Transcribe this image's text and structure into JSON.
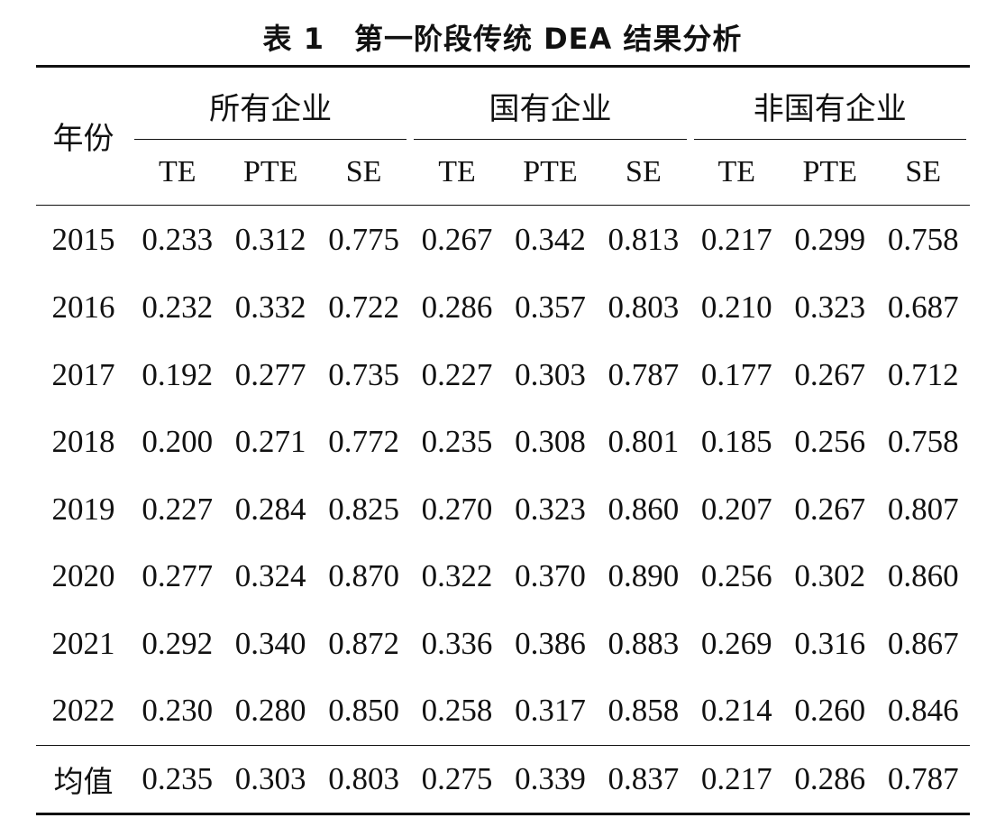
{
  "caption": "表 1　第一阶段传统 DEA 结果分析",
  "table": {
    "year_header": "年份",
    "groups": [
      "所有企业",
      "国有企业",
      "非国有企业"
    ],
    "sub_headers": [
      "TE",
      "PTE",
      "SE"
    ],
    "rows": [
      {
        "year": "2015",
        "values": [
          "0.233",
          "0.312",
          "0.775",
          "0.267",
          "0.342",
          "0.813",
          "0.217",
          "0.299",
          "0.758"
        ]
      },
      {
        "year": "2016",
        "values": [
          "0.232",
          "0.332",
          "0.722",
          "0.286",
          "0.357",
          "0.803",
          "0.210",
          "0.323",
          "0.687"
        ]
      },
      {
        "year": "2017",
        "values": [
          "0.192",
          "0.277",
          "0.735",
          "0.227",
          "0.303",
          "0.787",
          "0.177",
          "0.267",
          "0.712"
        ]
      },
      {
        "year": "2018",
        "values": [
          "0.200",
          "0.271",
          "0.772",
          "0.235",
          "0.308",
          "0.801",
          "0.185",
          "0.256",
          "0.758"
        ]
      },
      {
        "year": "2019",
        "values": [
          "0.227",
          "0.284",
          "0.825",
          "0.270",
          "0.323",
          "0.860",
          "0.207",
          "0.267",
          "0.807"
        ]
      },
      {
        "year": "2020",
        "values": [
          "0.277",
          "0.324",
          "0.870",
          "0.322",
          "0.370",
          "0.890",
          "0.256",
          "0.302",
          "0.860"
        ]
      },
      {
        "year": "2021",
        "values": [
          "0.292",
          "0.340",
          "0.872",
          "0.336",
          "0.386",
          "0.883",
          "0.269",
          "0.316",
          "0.867"
        ]
      },
      {
        "year": "2022",
        "values": [
          "0.230",
          "0.280",
          "0.850",
          "0.258",
          "0.317",
          "0.858",
          "0.214",
          "0.260",
          "0.846"
        ]
      }
    ],
    "mean_row": {
      "label": "均值",
      "values": [
        "0.235",
        "0.303",
        "0.803",
        "0.275",
        "0.339",
        "0.837",
        "0.217",
        "0.286",
        "0.787"
      ]
    }
  }
}
